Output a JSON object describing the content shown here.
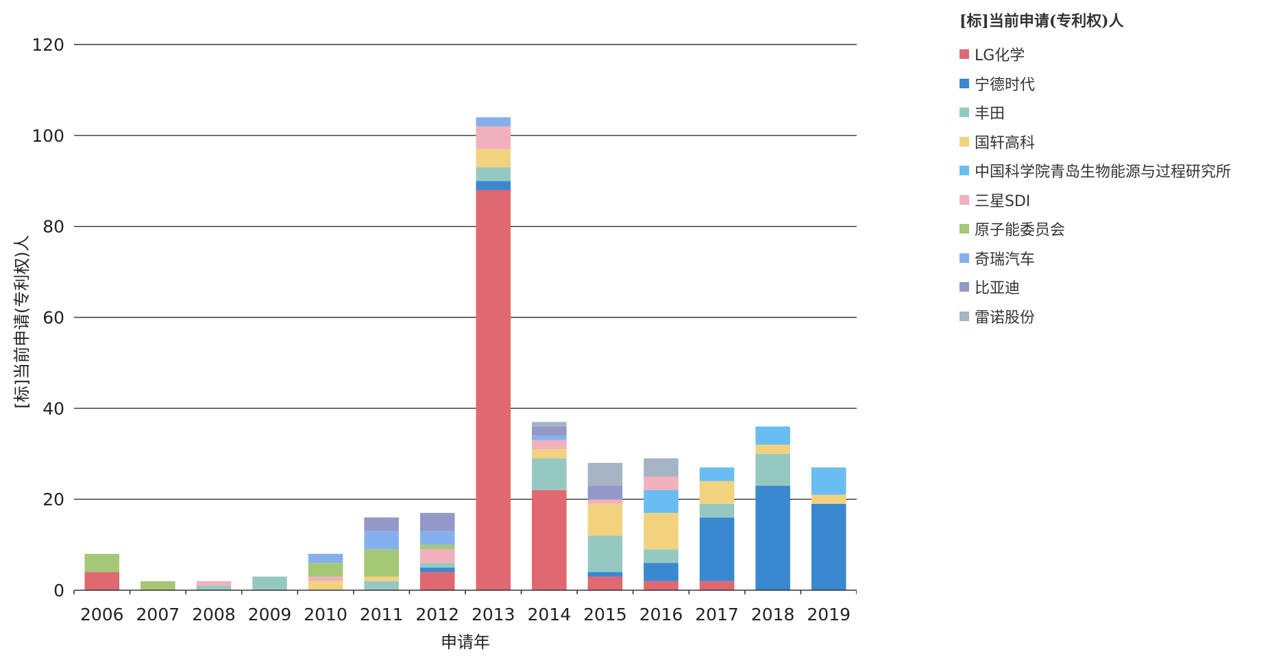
{
  "chart_data": {
    "type": "bar",
    "stacked": true,
    "title": "",
    "xlabel": "申请年",
    "ylabel": "[标]当前申请(专利权)人",
    "ylim": [
      0,
      120
    ],
    "yticks": [
      0,
      20,
      40,
      60,
      80,
      100,
      120
    ],
    "grid": true,
    "legend_position": "right",
    "legend_title": "[标]当前申请(专利权)人",
    "categories": [
      "2006",
      "2007",
      "2008",
      "2009",
      "2010",
      "2011",
      "2012",
      "2013",
      "2014",
      "2015",
      "2016",
      "2017",
      "2018",
      "2019"
    ],
    "series": [
      {
        "name": "LG化学",
        "color": "#e06870",
        "values": [
          4,
          0,
          0,
          0,
          0,
          0,
          4,
          88,
          22,
          3,
          2,
          2,
          0,
          0
        ]
      },
      {
        "name": "宁德时代",
        "color": "#3a88d0",
        "values": [
          0,
          0,
          0,
          0,
          0,
          0,
          1,
          2,
          0,
          1,
          4,
          14,
          23,
          19
        ]
      },
      {
        "name": "丰田",
        "color": "#96c8c2",
        "values": [
          0,
          0,
          1,
          3,
          0,
          2,
          1,
          3,
          7,
          8,
          3,
          3,
          7,
          0
        ]
      },
      {
        "name": "国轩高科",
        "color": "#f2d27e",
        "values": [
          0,
          0,
          0,
          0,
          2,
          1,
          0,
          4,
          2,
          7,
          8,
          5,
          2,
          2
        ]
      },
      {
        "name": "中国科学院青岛生物能源与过程研究所",
        "color": "#6abdf2",
        "values": [
          0,
          0,
          0,
          0,
          0,
          0,
          0,
          0,
          0,
          0,
          5,
          3,
          4,
          6
        ]
      },
      {
        "name": "三星SDI",
        "color": "#f0b0bc",
        "values": [
          0,
          0,
          1,
          0,
          1,
          0,
          3,
          5,
          2,
          1,
          3,
          0,
          0,
          0
        ]
      },
      {
        "name": "原子能委员会",
        "color": "#a4c876",
        "values": [
          4,
          2,
          0,
          0,
          3,
          6,
          1,
          0,
          0,
          0,
          0,
          0,
          0,
          0
        ]
      },
      {
        "name": "奇瑞汽车",
        "color": "#86b0ec",
        "values": [
          0,
          0,
          0,
          0,
          2,
          4,
          3,
          2,
          1,
          0,
          0,
          0,
          0,
          0
        ]
      },
      {
        "name": "比亚迪",
        "color": "#9498c8",
        "values": [
          0,
          0,
          0,
          0,
          0,
          3,
          4,
          0,
          2,
          3,
          0,
          0,
          0,
          0
        ]
      },
      {
        "name": "雷诺股份",
        "color": "#a4b4c4",
        "values": [
          0,
          0,
          0,
          0,
          0,
          0,
          0,
          0,
          1,
          5,
          4,
          0,
          0,
          0
        ]
      }
    ]
  }
}
